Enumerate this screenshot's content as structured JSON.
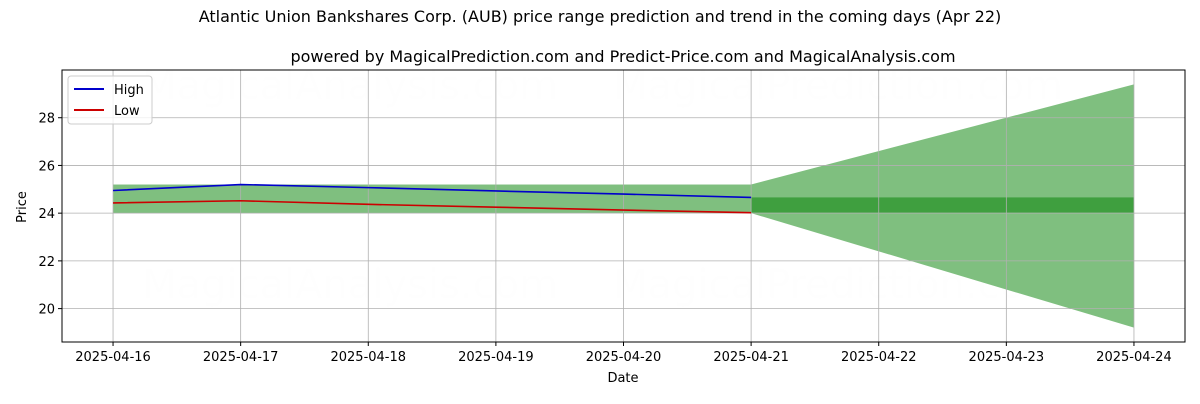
{
  "chart_data": {
    "type": "line",
    "title": "Atlantic Union Bankshares Corp. (AUB) price range prediction and trend in the coming days (Apr 22)",
    "subtitle": "powered by MagicalPrediction.com and Predict-Price.com and MagicalAnalysis.com",
    "xlabel": "Date",
    "ylabel": "Price",
    "x": [
      "2025-04-16",
      "2025-04-17",
      "2025-04-18",
      "2025-04-19",
      "2025-04-20",
      "2025-04-21",
      "2025-04-22",
      "2025-04-23",
      "2025-04-24"
    ],
    "series": [
      {
        "name": "High",
        "color": "#0000cc",
        "x": [
          "2025-04-16",
          "2025-04-17",
          "2025-04-18",
          "2025-04-19",
          "2025-04-20",
          "2025-04-21"
        ],
        "values": [
          24.95,
          25.2,
          25.07,
          24.93,
          24.8,
          24.66
        ]
      },
      {
        "name": "Low",
        "color": "#cc0000",
        "x": [
          "2025-04-16",
          "2025-04-17",
          "2025-04-18",
          "2025-04-19",
          "2025-04-20",
          "2025-04-21"
        ],
        "values": [
          24.43,
          24.52,
          24.37,
          24.25,
          24.13,
          24.02
        ]
      }
    ],
    "historical_band": {
      "x_start": "2025-04-16",
      "x_end": "2025-04-21",
      "upper": 25.2,
      "lower": 24.0,
      "color": "#008000"
    },
    "forecast_cone": {
      "x_start": "2025-04-21",
      "x_end": "2025-04-24",
      "start_upper": 25.2,
      "start_lower": 24.0,
      "end_upper": 29.4,
      "end_lower": 19.2,
      "color": "#008000"
    },
    "forecast_band": {
      "x_start": "2025-04-21",
      "x_end": "2025-04-24",
      "upper": 24.66,
      "lower": 24.02,
      "color": "#008000"
    },
    "yticks": [
      20,
      22,
      24,
      26,
      28
    ],
    "ylim": [
      18.6,
      30.0
    ],
    "xlim": [
      "2025-04-15.6",
      "2025-04-24.4"
    ],
    "grid": true,
    "legend_position": "top-left",
    "watermarks": [
      "MagicalAnalysis.com",
      "MagicalPrediction.com"
    ]
  }
}
